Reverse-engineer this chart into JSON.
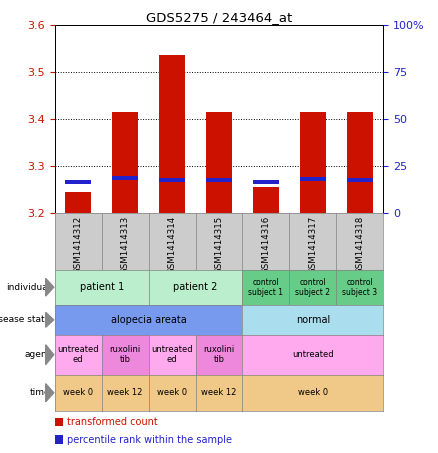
{
  "title": "GDS5275 / 243464_at",
  "samples": [
    "GSM1414312",
    "GSM1414313",
    "GSM1414314",
    "GSM1414315",
    "GSM1414316",
    "GSM1414317",
    "GSM1414318"
  ],
  "red_values": [
    3.245,
    3.415,
    3.535,
    3.415,
    3.255,
    3.415,
    3.415
  ],
  "blue_values": [
    3.265,
    3.275,
    3.27,
    3.27,
    3.265,
    3.272,
    3.27
  ],
  "ylim_left": [
    3.2,
    3.6
  ],
  "ylim_right": [
    0,
    100
  ],
  "yticks_left": [
    3.2,
    3.3,
    3.4,
    3.5,
    3.6
  ],
  "yticks_right": [
    0,
    25,
    50,
    75,
    100
  ],
  "ytick_labels_right": [
    "0",
    "25",
    "50",
    "75",
    "100%"
  ],
  "bar_bottom": 3.2,
  "blue_bar_height": 0.008,
  "red_color": "#cc1100",
  "blue_color": "#2222cc",
  "plot_bg": "#ffffff",
  "xtick_bg": "#cccccc",
  "individual_color_light": "#bbeecc",
  "individual_color_dark": "#66cc88",
  "disease_color_alopecia": "#7799ee",
  "disease_color_normal": "#aaddee",
  "agent_color_untreated": "#ffaaee",
  "agent_color_ruxolini": "#ee88dd",
  "time_color": "#f0c888",
  "legend_red": "transformed count",
  "legend_blue": "percentile rank within the sample",
  "bar_width": 0.55
}
